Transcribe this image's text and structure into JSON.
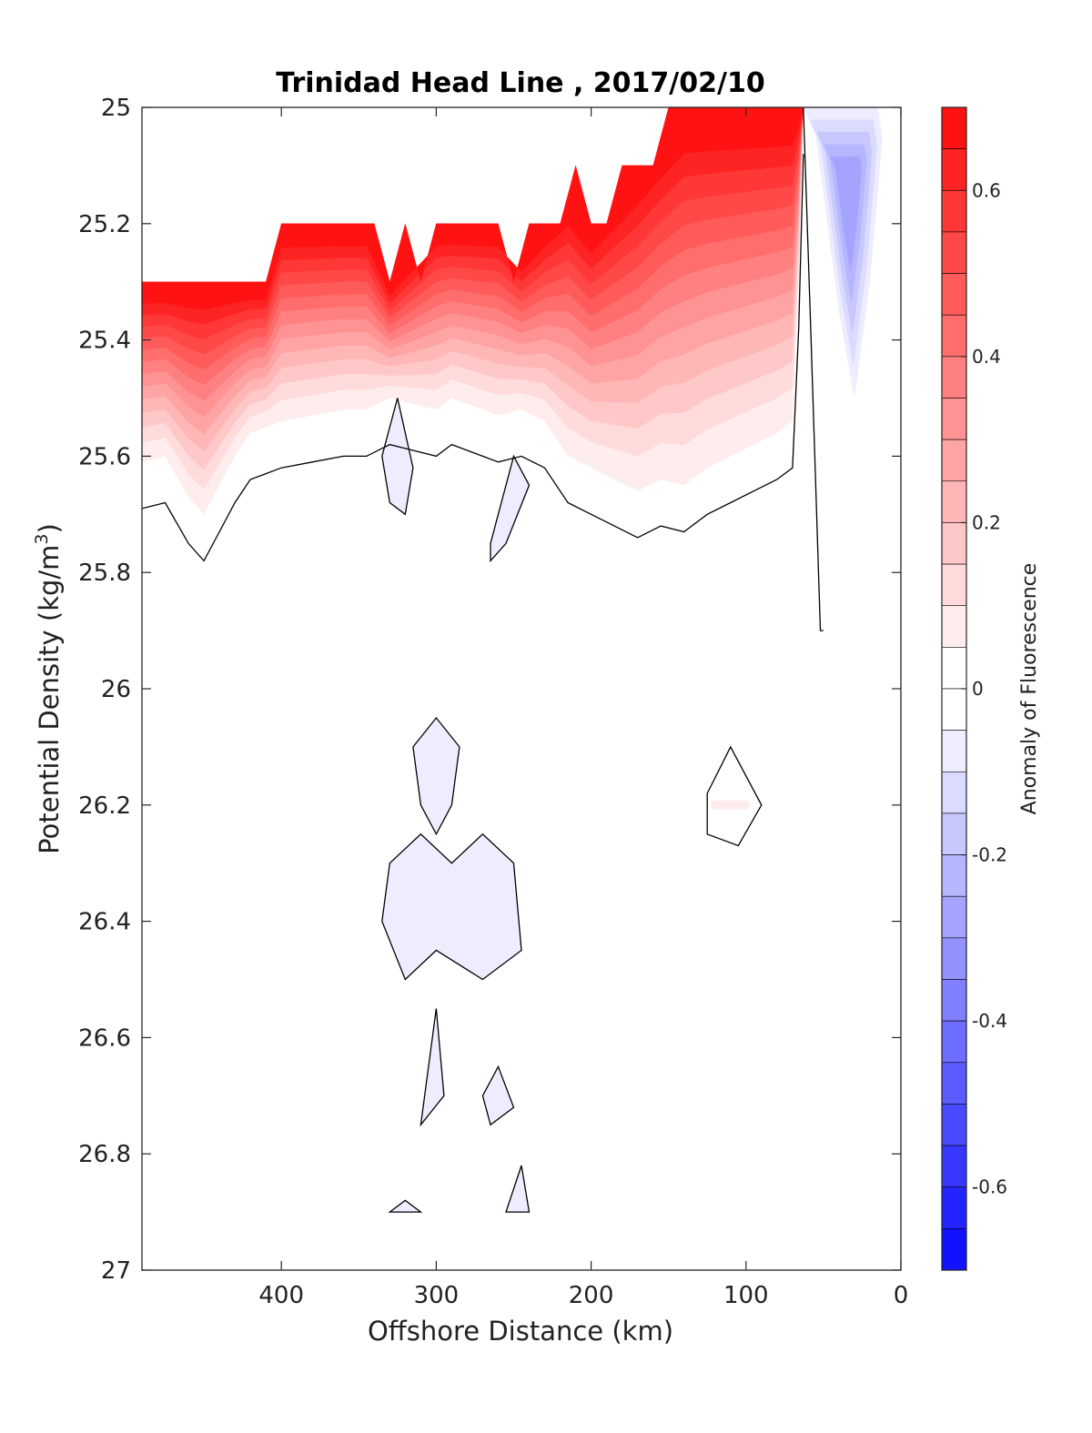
{
  "chart_data": {
    "type": "heatmap",
    "subtype": "filled-contour",
    "title": "Trinidad Head Line , 2017/02/10",
    "xlabel": "Offshore Distance (km)",
    "ylabel": "Potential Density (kg/m",
    "ylabel_sup": "3",
    "ylabel_close": ")",
    "colorbar_label": "Anomaly of Fluorescence",
    "xlim": [
      490,
      0
    ],
    "x_reversed": true,
    "ylim": [
      25,
      27
    ],
    "y_reversed": true,
    "xticks": [
      400,
      300,
      200,
      100,
      0
    ],
    "xtick_labels": [
      "400",
      "300",
      "200",
      "100",
      "0"
    ],
    "yticks": [
      25,
      25.2,
      25.4,
      25.6,
      25.8,
      26,
      26.2,
      26.4,
      26.6,
      26.8,
      27
    ],
    "ytick_labels": [
      "25",
      "25.2",
      "25.4",
      "25.6",
      "25.8",
      "26",
      "26.2",
      "26.4",
      "26.6",
      "26.8",
      "27"
    ],
    "colorbar_range": [
      -0.7,
      0.7
    ],
    "colorbar_step": 0.05,
    "colorbar_ticks": [
      0.6,
      0.4,
      0.2,
      0,
      -0.2,
      -0.4,
      -0.6
    ],
    "colorbar_tick_labels": [
      "0.6",
      "0.4",
      "0.2",
      "0",
      "-0.2",
      "-0.4",
      "-0.6"
    ],
    "colormap": {
      "negative": "#0000ff",
      "zero": "#ffffff",
      "positive": "#ff0000"
    },
    "contour_line_level": 0,
    "contour_line_color": "#000000",
    "data_upper_boundary": {
      "x": [
        490,
        410,
        400,
        340,
        330,
        320,
        310,
        300,
        260,
        250,
        240,
        220,
        210,
        200,
        190,
        180,
        160,
        150,
        60
      ],
      "y": [
        25.3,
        25.3,
        25.2,
        25.2,
        25.3,
        25.2,
        25.3,
        25.2,
        25.2,
        25.3,
        25.2,
        25.2,
        25.1,
        25.2,
        25.2,
        25.1,
        25.1,
        25.0,
        25.0
      ]
    },
    "positive_region": {
      "boundary_x": [
        490,
        475,
        460,
        450,
        440,
        430,
        420,
        410,
        400,
        380,
        360,
        345,
        330,
        315,
        300,
        290,
        280,
        270,
        260,
        245,
        230,
        215,
        200,
        185,
        170,
        155,
        140,
        125,
        110,
        95,
        80,
        70,
        66,
        63
      ],
      "boundary_y": [
        25.61,
        25.6,
        25.67,
        25.7,
        25.65,
        25.6,
        25.56,
        25.55,
        25.54,
        25.53,
        25.52,
        25.52,
        25.5,
        25.51,
        25.52,
        25.5,
        25.51,
        25.52,
        25.53,
        25.52,
        25.54,
        25.6,
        25.62,
        25.64,
        25.66,
        25.64,
        25.65,
        25.62,
        25.6,
        25.58,
        25.56,
        25.54,
        25.3,
        25.0
      ],
      "band_levels": [
        0.05,
        0.1,
        0.15,
        0.2,
        0.25,
        0.3,
        0.35,
        0.4,
        0.45,
        0.5,
        0.55,
        0.6,
        0.65
      ],
      "max_value": 0.65,
      "peak_locations": [
        [
          470,
          25.3
        ],
        [
          355,
          25.2
        ],
        [
          280,
          25.2
        ],
        [
          115,
          25.0
        ]
      ]
    },
    "negative_regions": [
      {
        "value": -0.25,
        "x": [
          63,
          55,
          50,
          40,
          30,
          20,
          15,
          12,
          15,
          30,
          45
        ],
        "y": [
          25.0,
          25.05,
          25.15,
          25.35,
          25.5,
          25.3,
          25.15,
          25.05,
          25.0,
          25.0,
          25.0
        ]
      },
      {
        "value": -0.05,
        "x": [
          335,
          325,
          315,
          320,
          330
        ],
        "y": [
          25.6,
          25.5,
          25.62,
          25.7,
          25.68
        ]
      },
      {
        "value": -0.05,
        "x": [
          265,
          250,
          240,
          255,
          265
        ],
        "y": [
          25.75,
          25.6,
          25.65,
          25.75,
          25.78
        ]
      },
      {
        "value": -0.05,
        "x": [
          315,
          300,
          285,
          290,
          300,
          310
        ],
        "y": [
          26.1,
          26.05,
          26.1,
          26.2,
          26.25,
          26.2
        ]
      },
      {
        "value": -0.05,
        "x": [
          330,
          310,
          290,
          270,
          250,
          245,
          270,
          300,
          320,
          335
        ],
        "y": [
          26.3,
          26.25,
          26.3,
          26.25,
          26.3,
          26.45,
          26.5,
          26.45,
          26.5,
          26.4
        ]
      },
      {
        "value": -0.05,
        "x": [
          305,
          300,
          295,
          310
        ],
        "y": [
          26.65,
          26.55,
          26.7,
          26.75
        ]
      },
      {
        "value": -0.05,
        "x": [
          270,
          260,
          250,
          265
        ],
        "y": [
          26.7,
          26.65,
          26.72,
          26.75
        ]
      },
      {
        "value": -0.05,
        "x": [
          255,
          245,
          240
        ],
        "y": [
          26.9,
          26.82,
          26.9
        ]
      },
      {
        "value": -0.05,
        "x": [
          330,
          320,
          310
        ],
        "y": [
          26.9,
          26.88,
          26.9
        ]
      }
    ],
    "small_positive_patch": {
      "value": 0.05,
      "x": [
        120,
        100
      ],
      "y": [
        26.2,
        26.2
      ]
    }
  }
}
